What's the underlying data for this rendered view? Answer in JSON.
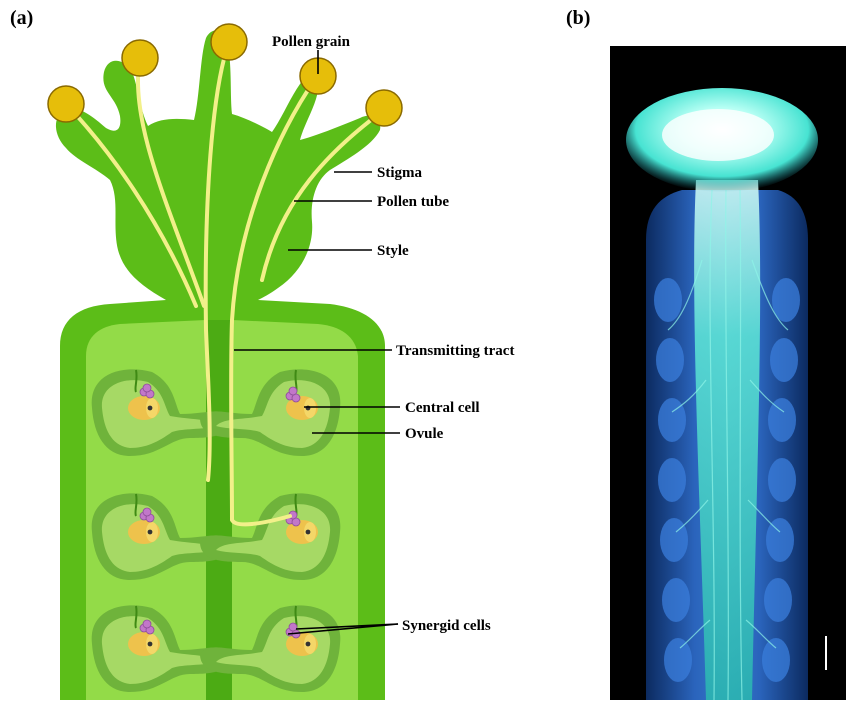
{
  "panels": {
    "a": {
      "label": "(a)"
    },
    "b": {
      "label": "(b)"
    }
  },
  "labels": {
    "pollen_grain": "Pollen grain",
    "stigma": "Stigma",
    "pollen_tube": "Pollen tube",
    "style": "Style",
    "transmitting_tract": "Transmitting tract",
    "central_cell": "Central cell",
    "ovule": "Ovule",
    "synergid_cells": "Synergid cells"
  },
  "colors": {
    "pistil_green": "#5cbd18",
    "ovary_light_green": "#93db48",
    "tract_green": "#4cab14",
    "ovule_outer": "#6fb33b",
    "ovule_inner": "#a6d965",
    "pollen_yellow": "#e6be0a",
    "pollen_tube_yellow": "#f2f08a",
    "synergid_purple": "#c277c9",
    "central_cell_yellow": "#eec24c",
    "micrograph_background": "#000000",
    "micrograph_cyan": "#47e3d2",
    "micrograph_blue": "#2f6fd1"
  }
}
